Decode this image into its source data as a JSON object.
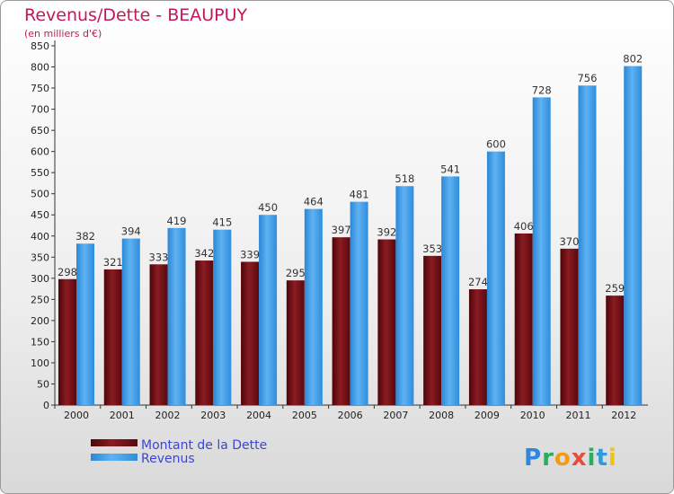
{
  "colors": {
    "debt": "#7a0f17",
    "revenue": "#3a9be8",
    "title": "#c2185b",
    "legend_text": "#3b46d6"
  },
  "logo": {
    "text": "Proxiti"
  },
  "chart_data": {
    "type": "bar",
    "title": "Revenus/Dette - BEAUPUY",
    "subtitle": "(en milliers d'€)",
    "categories": [
      "2000",
      "2001",
      "2002",
      "2003",
      "2004",
      "2005",
      "2006",
      "2007",
      "2008",
      "2009",
      "2010",
      "2011",
      "2012"
    ],
    "series": [
      {
        "name": "Montant de la Dette",
        "values": [
          298,
          321,
          333,
          342,
          339,
          295,
          397,
          392,
          353,
          274,
          406,
          370,
          259
        ]
      },
      {
        "name": "Revenus",
        "values": [
          382,
          394,
          419,
          415,
          450,
          464,
          481,
          518,
          541,
          600,
          728,
          756,
          802
        ]
      }
    ],
    "ylim": [
      0,
      850
    ],
    "ytick_step": 50,
    "grid": false,
    "legend_position": "bottom-left"
  }
}
